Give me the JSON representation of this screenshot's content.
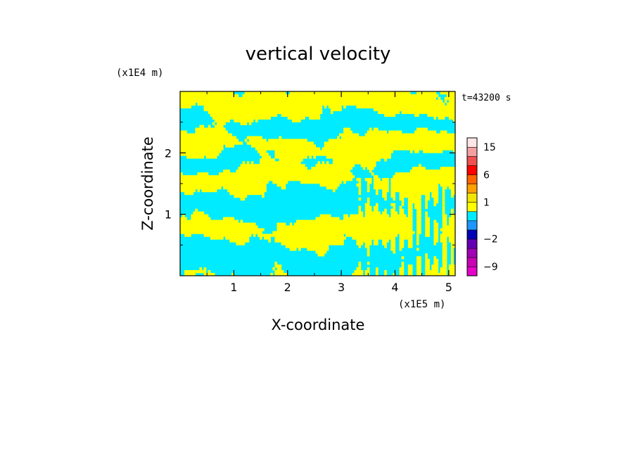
{
  "chart_data": {
    "type": "heatmap",
    "title": "vertical velocity",
    "xlabel": "X-coordinate",
    "ylabel": "Z-coordinate",
    "x_unit": "(x1E5 m)",
    "y_unit": "(x1E4 m)",
    "time_label": "t=43200 s",
    "xlim": [
      0,
      5.12
    ],
    "ylim": [
      0,
      3.0
    ],
    "x_ticks": [
      1,
      2,
      3,
      4,
      5
    ],
    "y_ticks": [
      1,
      2
    ],
    "x_tick_labels": [
      "1",
      "2",
      "3",
      "4",
      "5"
    ],
    "y_tick_labels": [
      "1",
      "2"
    ],
    "colorbar": {
      "levels": [
        {
          "from": -12,
          "to": -9,
          "color": "#e600c8"
        },
        {
          "from": -9,
          "to": -6,
          "color": "#c800b4"
        },
        {
          "from": -6,
          "to": -4,
          "color": "#a000b4"
        },
        {
          "from": -4,
          "to": -2,
          "color": "#6400b4"
        },
        {
          "from": -2,
          "to": -1,
          "color": "#0000b4"
        },
        {
          "from": -1,
          "to": 0,
          "color": "#1e96ff"
        },
        {
          "from": 0,
          "to": 0.5,
          "color": "#00ebff"
        },
        {
          "from": 0.5,
          "to": 1,
          "color": "#ffff00"
        },
        {
          "from": 1,
          "to": 2,
          "color": "#f0e600"
        },
        {
          "from": 2,
          "to": 4,
          "color": "#ffa000"
        },
        {
          "from": 4,
          "to": 6,
          "color": "#ff6400"
        },
        {
          "from": 6,
          "to": 9,
          "color": "#ff0000"
        },
        {
          "from": 9,
          "to": 12,
          "color": "#f05050"
        },
        {
          "from": 12,
          "to": 15,
          "color": "#f5a0a0"
        },
        {
          "from": 15,
          "to": 20,
          "color": "#ffe6e6"
        }
      ],
      "tick_labels": [
        {
          "value": 15,
          "label": "15"
        },
        {
          "value": 6,
          "label": "6"
        },
        {
          "value": 1,
          "label": "1"
        },
        {
          "value": -2,
          "label": "−2"
        },
        {
          "value": -9,
          "label": "−9"
        }
      ]
    },
    "field_colors": {
      "positive": "#ffff00",
      "negative": "#00ebff"
    },
    "field_bands": [
      {
        "z_center": 0.3,
        "z_width": 0.28,
        "sign": "negative"
      },
      {
        "z_center": 0.75,
        "z_width": 0.25,
        "sign": "positive"
      },
      {
        "z_center": 1.15,
        "z_width": 0.3,
        "sign": "negative"
      },
      {
        "z_center": 1.6,
        "z_width": 0.2,
        "sign": "positive"
      },
      {
        "z_center": 1.85,
        "z_width": 0.15,
        "sign": "negative"
      },
      {
        "z_center": 2.1,
        "z_width": 0.2,
        "sign": "positive"
      },
      {
        "z_center": 2.45,
        "z_width": 0.18,
        "sign": "negative"
      },
      {
        "z_center": 2.8,
        "z_width": 0.2,
        "sign": "positive"
      }
    ]
  }
}
